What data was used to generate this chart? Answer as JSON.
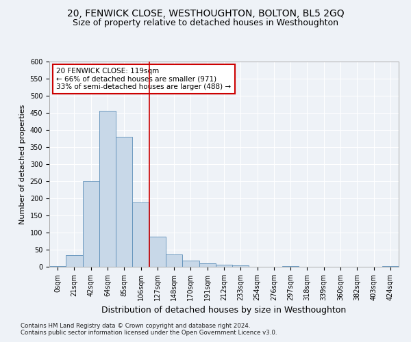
{
  "title": "20, FENWICK CLOSE, WESTHOUGHTON, BOLTON, BL5 2GQ",
  "subtitle": "Size of property relative to detached houses in Westhoughton",
  "xlabel": "Distribution of detached houses by size in Westhoughton",
  "ylabel": "Number of detached properties",
  "footnote1": "Contains HM Land Registry data © Crown copyright and database right 2024.",
  "footnote2": "Contains public sector information licensed under the Open Government Licence v3.0.",
  "bar_labels": [
    "0sqm",
    "21sqm",
    "42sqm",
    "64sqm",
    "85sqm",
    "106sqm",
    "127sqm",
    "148sqm",
    "170sqm",
    "191sqm",
    "212sqm",
    "233sqm",
    "254sqm",
    "276sqm",
    "297sqm",
    "318sqm",
    "339sqm",
    "360sqm",
    "382sqm",
    "403sqm",
    "424sqm"
  ],
  "bar_values": [
    2,
    35,
    250,
    457,
    380,
    188,
    88,
    37,
    18,
    11,
    6,
    5,
    1,
    0,
    2,
    0,
    0,
    0,
    1,
    0,
    2
  ],
  "bar_color": "#c8d8e8",
  "bar_edge_color": "#5b8db8",
  "vline_x": 5.5,
  "vline_color": "#cc0000",
  "annotation_text": "20 FENWICK CLOSE: 119sqm\n← 66% of detached houses are smaller (971)\n33% of semi-detached houses are larger (488) →",
  "annotation_box_color": "#ffffff",
  "annotation_box_edge": "#cc0000",
  "ylim": [
    0,
    600
  ],
  "yticks": [
    0,
    50,
    100,
    150,
    200,
    250,
    300,
    350,
    400,
    450,
    500,
    550,
    600
  ],
  "background_color": "#eef2f7",
  "grid_color": "#ffffff",
  "title_fontsize": 10,
  "subtitle_fontsize": 9,
  "xlabel_fontsize": 9,
  "ylabel_fontsize": 8,
  "tick_fontsize": 7,
  "annot_fontsize": 7.5
}
